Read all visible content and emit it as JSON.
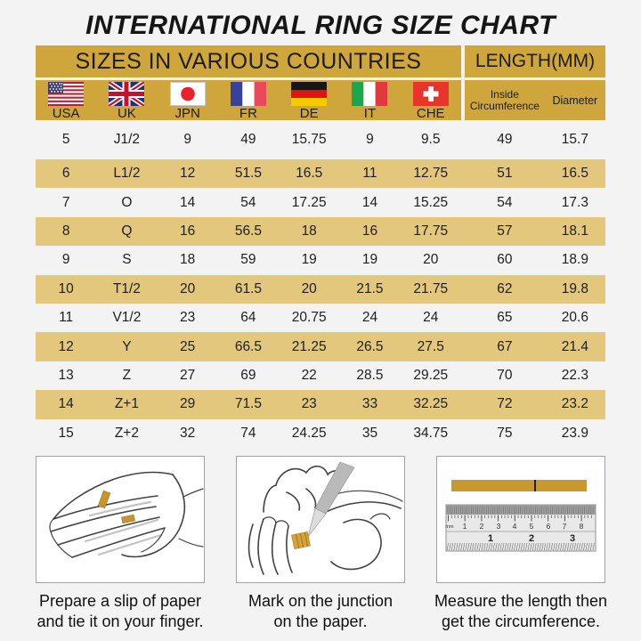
{
  "title": "INTERNATIONAL RING SIZE CHART",
  "table": {
    "header_left": "SIZES IN VARIOUS COUNTRIES",
    "header_right": "LENGTH(MM)",
    "countries": [
      {
        "code": "USA"
      },
      {
        "code": "UK"
      },
      {
        "code": "JPN"
      },
      {
        "code": "FR"
      },
      {
        "code": "DE"
      },
      {
        "code": "IT"
      },
      {
        "code": "CHE"
      }
    ],
    "length_columns": [
      {
        "line1": "Inside",
        "line2": "Circumference"
      },
      {
        "line1": "Diameter",
        "line2": ""
      }
    ]
  },
  "chart_data": {
    "type": "table",
    "title": "INTERNATIONAL RING SIZE CHART",
    "columns": [
      "USA",
      "UK",
      "JPN",
      "FR",
      "DE",
      "IT",
      "CHE",
      "Inside Circumference (mm)",
      "Diameter (mm)"
    ],
    "rows": [
      [
        "5",
        "J1/2",
        "9",
        "49",
        "15.75",
        "9",
        "9.5",
        "49",
        "15.7"
      ],
      [
        "6",
        "L1/2",
        "12",
        "51.5",
        "16.5",
        "11",
        "12.75",
        "51",
        "16.5"
      ],
      [
        "7",
        "O",
        "14",
        "54",
        "17.25",
        "14",
        "15.25",
        "54",
        "17.3"
      ],
      [
        "8",
        "Q",
        "16",
        "56.5",
        "18",
        "16",
        "17.75",
        "57",
        "18.1"
      ],
      [
        "9",
        "S",
        "18",
        "59",
        "19",
        "19",
        "20",
        "60",
        "18.9"
      ],
      [
        "10",
        "T1/2",
        "20",
        "61.5",
        "20",
        "21.5",
        "21.75",
        "62",
        "19.8"
      ],
      [
        "11",
        "V1/2",
        "23",
        "64",
        "20.75",
        "24",
        "24",
        "65",
        "20.6"
      ],
      [
        "12",
        "Y",
        "25",
        "66.5",
        "21.25",
        "26.5",
        "27.5",
        "67",
        "21.4"
      ],
      [
        "13",
        "Z",
        "27",
        "69",
        "22",
        "28.5",
        "29.25",
        "70",
        "22.3"
      ],
      [
        "14",
        "Z+1",
        "29",
        "71.5",
        "23",
        "33",
        "32.25",
        "72",
        "23.2"
      ],
      [
        "15",
        "Z+2",
        "32",
        "74",
        "24.25",
        "35",
        "34.75",
        "75",
        "23.9"
      ]
    ]
  },
  "instructions": [
    {
      "step": 1,
      "illustration": "hand-with-paper-slip",
      "caption_line1": "Prepare a slip of paper",
      "caption_line2": "and tie it on your finger."
    },
    {
      "step": 2,
      "illustration": "pen-marking-junction",
      "caption_line1": "Mark on the junction",
      "caption_line2": "on the paper."
    },
    {
      "step": 3,
      "illustration": "ruler-measuring-strip",
      "caption_line1": "Measure the length then",
      "caption_line2": "get the circumference."
    }
  ],
  "ruler": {
    "unit_label": "mm",
    "cm_numbers": [
      "1",
      "2",
      "3",
      "4",
      "5",
      "6",
      "7",
      "8"
    ],
    "inch_numbers": [
      "1",
      "2",
      "3"
    ]
  },
  "colors": {
    "background": "#F3F3F3",
    "gold_header": "#CFA63C",
    "gold_stripe": "#E3C77D",
    "gold_paper": "#C9942C",
    "text": "#1C1C1C"
  }
}
